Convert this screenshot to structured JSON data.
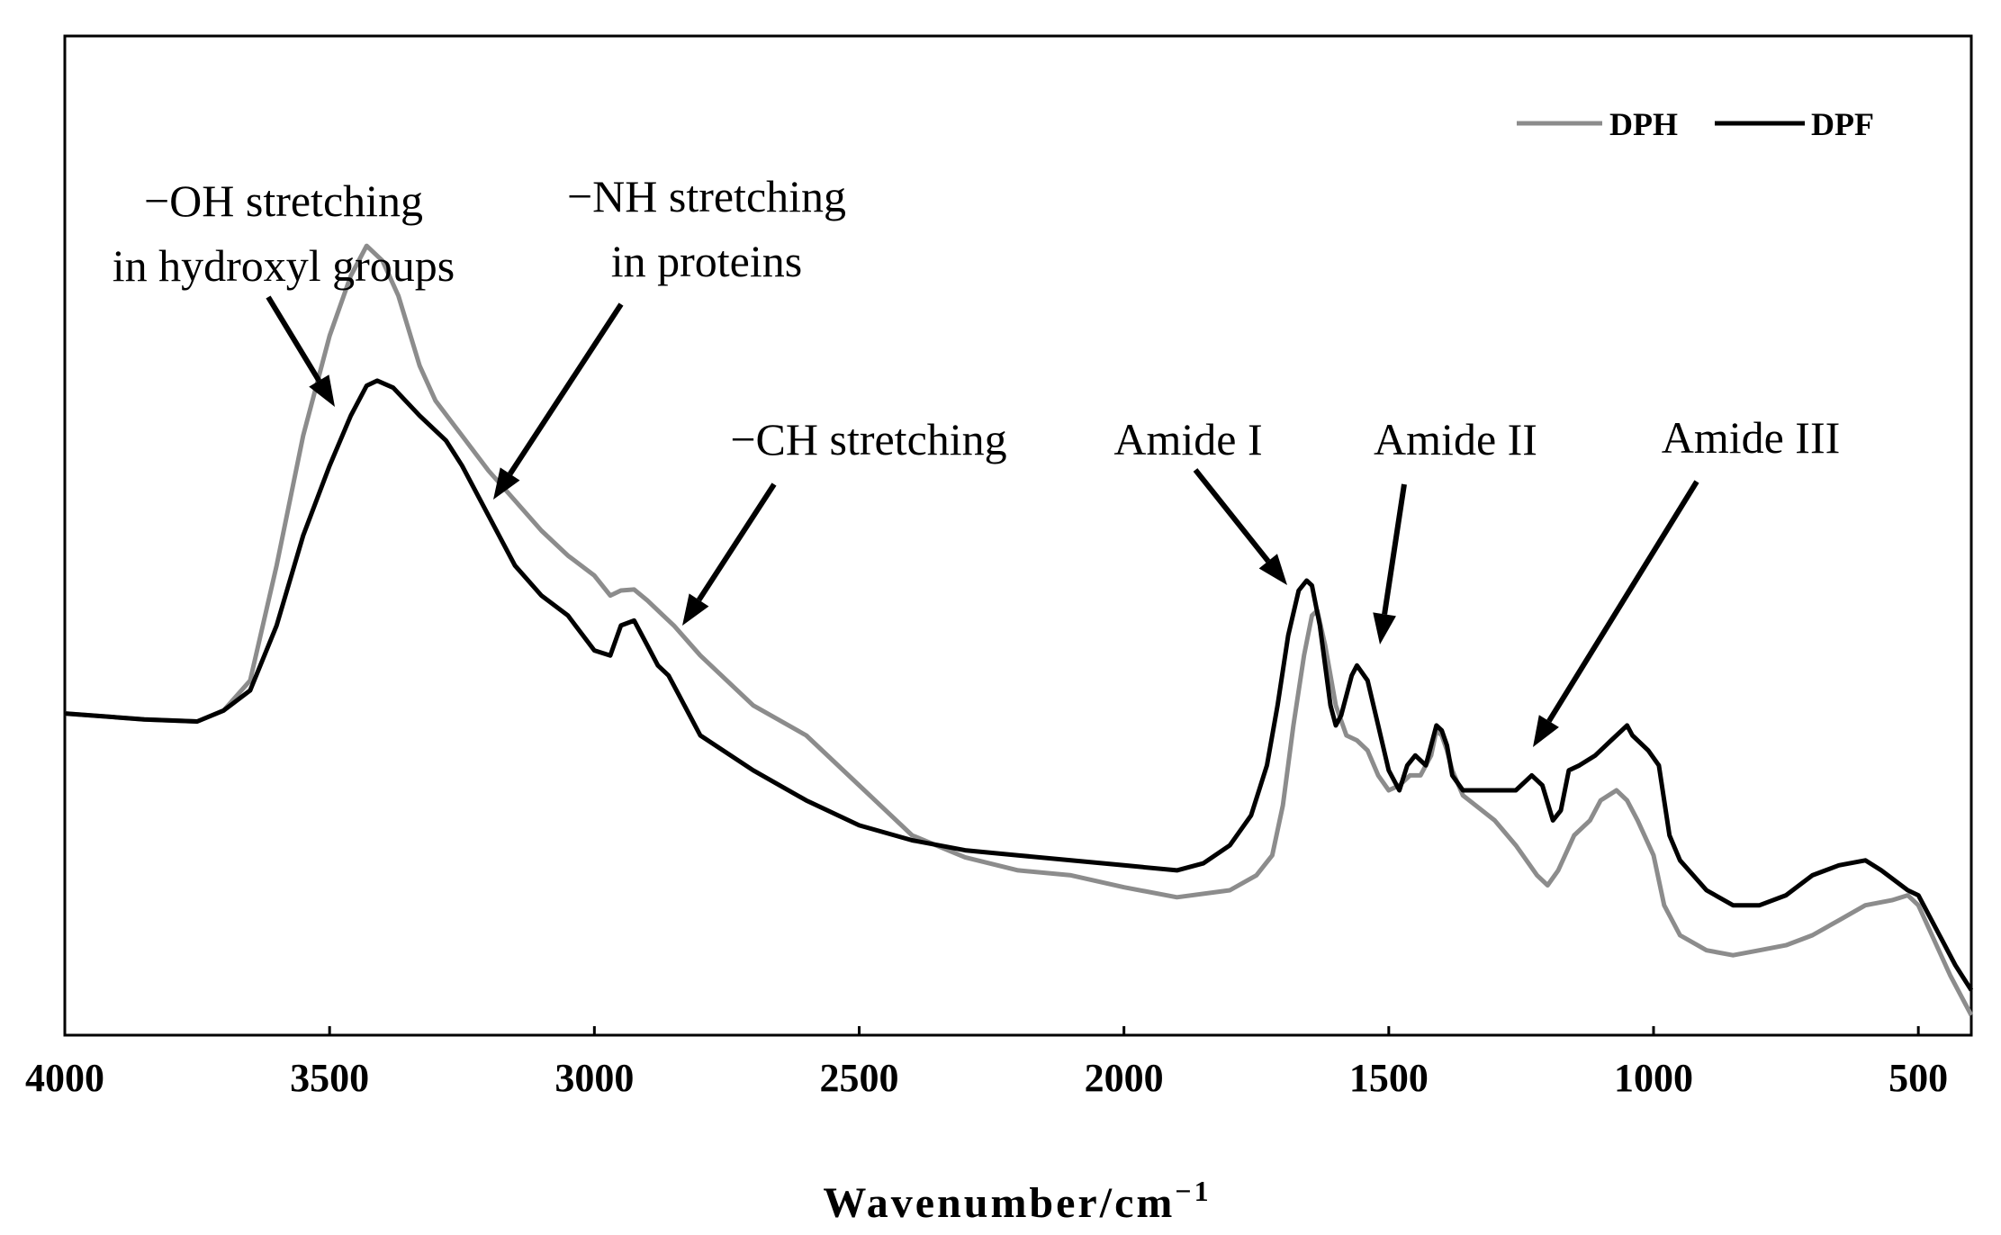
{
  "chart_data": {
    "type": "line",
    "title": "",
    "xlabel": "Wavenumber/cm",
    "xlabel_superscript": "−1",
    "ylabel": "",
    "xlim": [
      4000,
      400
    ],
    "ylim": [
      0,
      1
    ],
    "x_reversed": true,
    "grid": false,
    "legend_position": "top-right",
    "xticks": [
      {
        "value": 4000,
        "label": "4000"
      },
      {
        "value": 3500,
        "label": "3500"
      },
      {
        "value": 3000,
        "label": "3000"
      },
      {
        "value": 2500,
        "label": "2500"
      },
      {
        "value": 2000,
        "label": "2000"
      },
      {
        "value": 1500,
        "label": "1500"
      },
      {
        "value": 1000,
        "label": "1000"
      },
      {
        "value": 500,
        "label": "500"
      }
    ],
    "series": [
      {
        "name": "DPH",
        "color": "#8c8c8c",
        "points": [
          [
            4000,
            0.322
          ],
          [
            3850,
            0.316
          ],
          [
            3750,
            0.314
          ],
          [
            3700,
            0.325
          ],
          [
            3650,
            0.355
          ],
          [
            3600,
            0.47
          ],
          [
            3550,
            0.6
          ],
          [
            3500,
            0.7
          ],
          [
            3460,
            0.76
          ],
          [
            3430,
            0.79
          ],
          [
            3400,
            0.775
          ],
          [
            3370,
            0.74
          ],
          [
            3330,
            0.67
          ],
          [
            3300,
            0.635
          ],
          [
            3250,
            0.6
          ],
          [
            3200,
            0.565
          ],
          [
            3150,
            0.535
          ],
          [
            3100,
            0.505
          ],
          [
            3050,
            0.48
          ],
          [
            3000,
            0.46
          ],
          [
            2970,
            0.44
          ],
          [
            2950,
            0.445
          ],
          [
            2925,
            0.446
          ],
          [
            2900,
            0.435
          ],
          [
            2870,
            0.42
          ],
          [
            2850,
            0.41
          ],
          [
            2800,
            0.38
          ],
          [
            2700,
            0.33
          ],
          [
            2600,
            0.3
          ],
          [
            2500,
            0.25
          ],
          [
            2400,
            0.2
          ],
          [
            2300,
            0.178
          ],
          [
            2200,
            0.165
          ],
          [
            2100,
            0.16
          ],
          [
            2000,
            0.148
          ],
          [
            1900,
            0.138
          ],
          [
            1800,
            0.145
          ],
          [
            1750,
            0.16
          ],
          [
            1720,
            0.18
          ],
          [
            1700,
            0.23
          ],
          [
            1680,
            0.31
          ],
          [
            1660,
            0.38
          ],
          [
            1645,
            0.42
          ],
          [
            1635,
            0.425
          ],
          [
            1620,
            0.39
          ],
          [
            1600,
            0.33
          ],
          [
            1580,
            0.3
          ],
          [
            1560,
            0.295
          ],
          [
            1540,
            0.285
          ],
          [
            1520,
            0.26
          ],
          [
            1500,
            0.245
          ],
          [
            1480,
            0.25
          ],
          [
            1460,
            0.26
          ],
          [
            1440,
            0.26
          ],
          [
            1420,
            0.28
          ],
          [
            1410,
            0.305
          ],
          [
            1400,
            0.3
          ],
          [
            1390,
            0.285
          ],
          [
            1380,
            0.265
          ],
          [
            1360,
            0.24
          ],
          [
            1300,
            0.215
          ],
          [
            1260,
            0.19
          ],
          [
            1220,
            0.16
          ],
          [
            1200,
            0.15
          ],
          [
            1180,
            0.165
          ],
          [
            1150,
            0.2
          ],
          [
            1120,
            0.215
          ],
          [
            1100,
            0.235
          ],
          [
            1070,
            0.245
          ],
          [
            1050,
            0.235
          ],
          [
            1030,
            0.215
          ],
          [
            1000,
            0.18
          ],
          [
            980,
            0.13
          ],
          [
            950,
            0.1
          ],
          [
            900,
            0.085
          ],
          [
            850,
            0.08
          ],
          [
            800,
            0.085
          ],
          [
            750,
            0.09
          ],
          [
            700,
            0.1
          ],
          [
            650,
            0.115
          ],
          [
            600,
            0.13
          ],
          [
            550,
            0.135
          ],
          [
            520,
            0.14
          ],
          [
            500,
            0.13
          ],
          [
            470,
            0.095
          ],
          [
            440,
            0.06
          ],
          [
            410,
            0.03
          ],
          [
            400,
            0.02
          ]
        ]
      },
      {
        "name": "DPF",
        "color": "#000000",
        "points": [
          [
            4000,
            0.322
          ],
          [
            3850,
            0.316
          ],
          [
            3750,
            0.314
          ],
          [
            3700,
            0.325
          ],
          [
            3650,
            0.345
          ],
          [
            3600,
            0.41
          ],
          [
            3550,
            0.5
          ],
          [
            3500,
            0.57
          ],
          [
            3460,
            0.62
          ],
          [
            3430,
            0.65
          ],
          [
            3410,
            0.655
          ],
          [
            3380,
            0.648
          ],
          [
            3330,
            0.62
          ],
          [
            3280,
            0.595
          ],
          [
            3250,
            0.57
          ],
          [
            3200,
            0.52
          ],
          [
            3150,
            0.47
          ],
          [
            3100,
            0.44
          ],
          [
            3050,
            0.42
          ],
          [
            3000,
            0.385
          ],
          [
            2970,
            0.38
          ],
          [
            2950,
            0.41
          ],
          [
            2925,
            0.415
          ],
          [
            2900,
            0.39
          ],
          [
            2880,
            0.37
          ],
          [
            2860,
            0.36
          ],
          [
            2840,
            0.34
          ],
          [
            2800,
            0.3
          ],
          [
            2700,
            0.265
          ],
          [
            2600,
            0.235
          ],
          [
            2500,
            0.21
          ],
          [
            2400,
            0.195
          ],
          [
            2300,
            0.185
          ],
          [
            2200,
            0.18
          ],
          [
            2100,
            0.175
          ],
          [
            2000,
            0.17
          ],
          [
            1900,
            0.165
          ],
          [
            1850,
            0.172
          ],
          [
            1800,
            0.19
          ],
          [
            1760,
            0.22
          ],
          [
            1730,
            0.27
          ],
          [
            1710,
            0.33
          ],
          [
            1690,
            0.4
          ],
          [
            1670,
            0.445
          ],
          [
            1655,
            0.455
          ],
          [
            1645,
            0.45
          ],
          [
            1630,
            0.41
          ],
          [
            1610,
            0.33
          ],
          [
            1600,
            0.31
          ],
          [
            1590,
            0.32
          ],
          [
            1570,
            0.36
          ],
          [
            1560,
            0.37
          ],
          [
            1540,
            0.355
          ],
          [
            1520,
            0.31
          ],
          [
            1500,
            0.265
          ],
          [
            1480,
            0.245
          ],
          [
            1465,
            0.27
          ],
          [
            1450,
            0.28
          ],
          [
            1430,
            0.27
          ],
          [
            1420,
            0.29
          ],
          [
            1410,
            0.31
          ],
          [
            1400,
            0.305
          ],
          [
            1390,
            0.29
          ],
          [
            1380,
            0.26
          ],
          [
            1360,
            0.245
          ],
          [
            1300,
            0.245
          ],
          [
            1260,
            0.245
          ],
          [
            1230,
            0.26
          ],
          [
            1210,
            0.25
          ],
          [
            1190,
            0.215
          ],
          [
            1175,
            0.225
          ],
          [
            1160,
            0.265
          ],
          [
            1140,
            0.27
          ],
          [
            1110,
            0.28
          ],
          [
            1080,
            0.295
          ],
          [
            1060,
            0.305
          ],
          [
            1050,
            0.31
          ],
          [
            1040,
            0.3
          ],
          [
            1010,
            0.285
          ],
          [
            990,
            0.27
          ],
          [
            970,
            0.2
          ],
          [
            950,
            0.175
          ],
          [
            900,
            0.145
          ],
          [
            850,
            0.13
          ],
          [
            800,
            0.13
          ],
          [
            750,
            0.14
          ],
          [
            700,
            0.16
          ],
          [
            650,
            0.17
          ],
          [
            600,
            0.175
          ],
          [
            570,
            0.165
          ],
          [
            520,
            0.145
          ],
          [
            500,
            0.14
          ],
          [
            460,
            0.1
          ],
          [
            430,
            0.07
          ],
          [
            400,
            0.045
          ]
        ]
      }
    ],
    "annotations": [
      {
        "lines": [
          "−OH stretching",
          "in hydroxyl groups"
        ]
      },
      {
        "lines": [
          "−NH stretching",
          "in proteins"
        ]
      },
      {
        "lines": [
          "−CH stretching"
        ]
      },
      {
        "lines": [
          "Amide I"
        ]
      },
      {
        "lines": [
          "Amide II"
        ]
      },
      {
        "lines": [
          "Amide III"
        ]
      }
    ]
  }
}
